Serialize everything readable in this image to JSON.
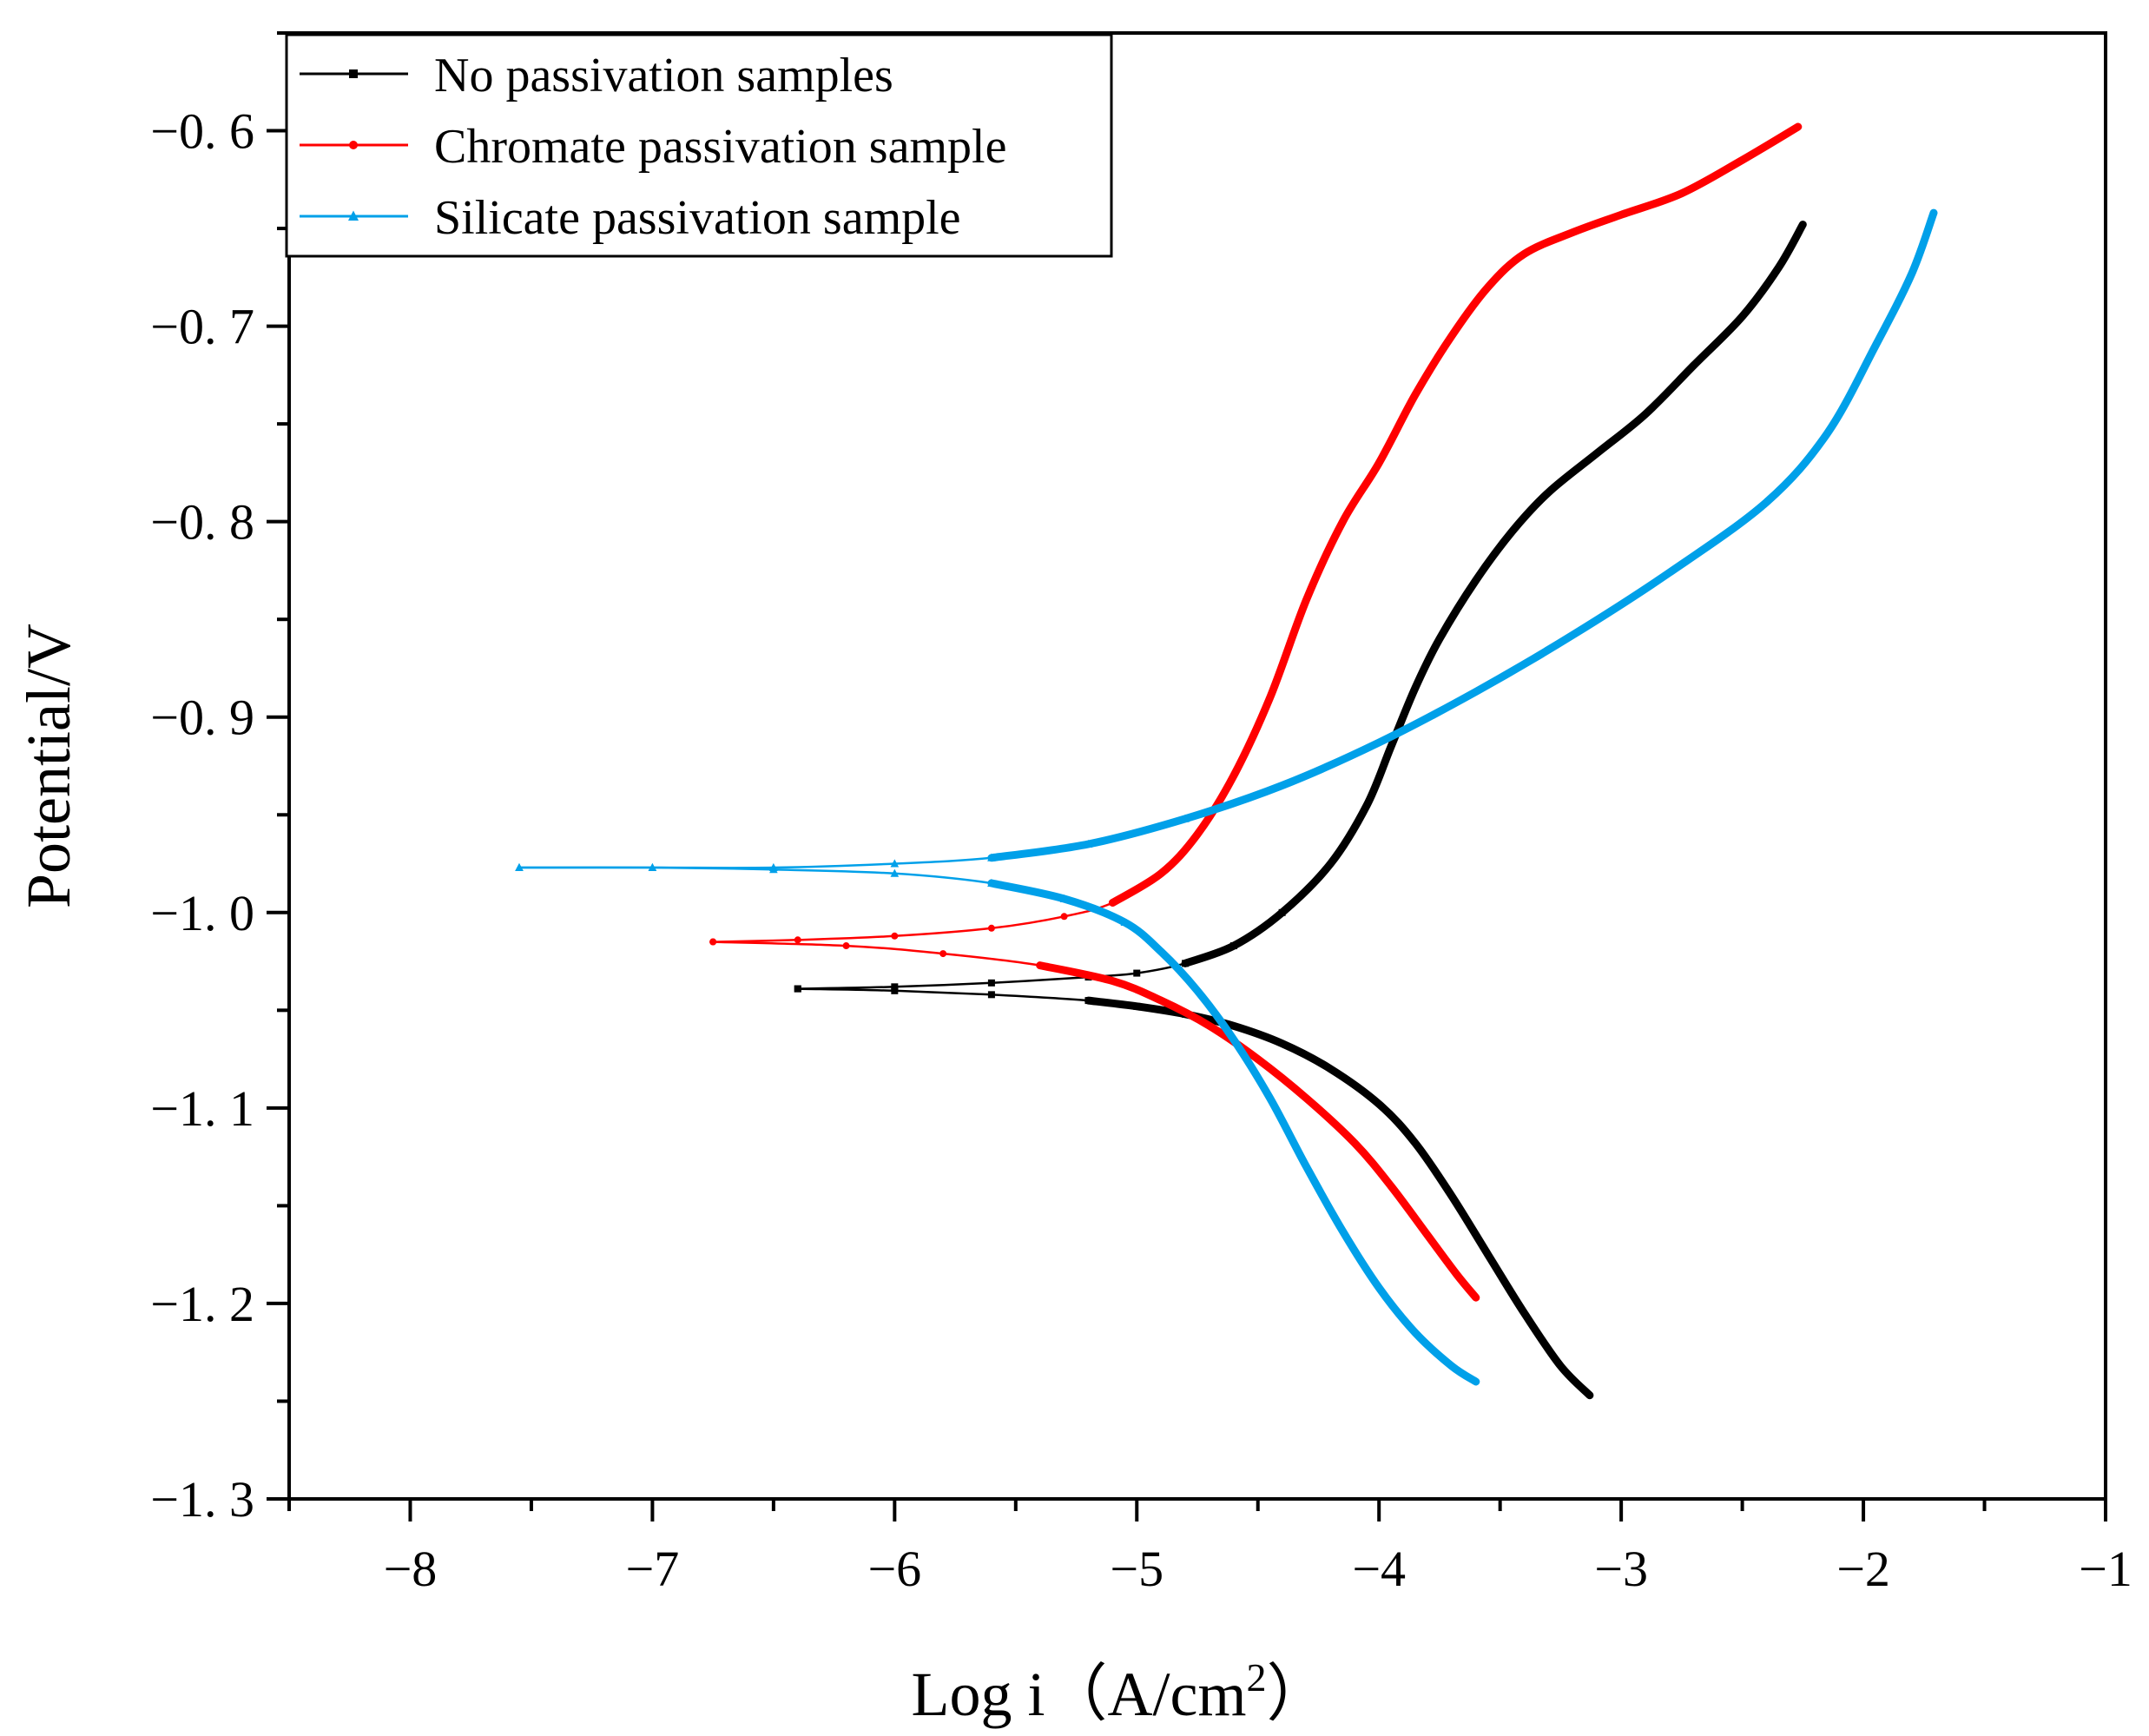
{
  "chart_data": {
    "type": "line",
    "title": "",
    "xlabel": "Log i",
    "xlabel_unit_prefix": "（A/cm",
    "xlabel_unit_sup": "2",
    "xlabel_unit_suffix": "）",
    "ylabel": "Potential/V",
    "xlim": [
      -8.5,
      -1
    ],
    "ylim": [
      -1.3,
      -0.55
    ],
    "x_ticks": [
      -8,
      -7,
      -6,
      -5,
      -4,
      -3,
      -2,
      -1
    ],
    "x_tick_labels": [
      "−8",
      "−7",
      "−6",
      "−5",
      "−4",
      "−3",
      "−2",
      "−1"
    ],
    "y_ticks": [
      -0.6,
      -0.7,
      -0.8,
      -0.9,
      -1.0,
      -1.1,
      -1.2,
      -1.3
    ],
    "y_tick_labels": [
      "−0. 6",
      "−0. 7",
      "−0. 8",
      "−0. 9",
      "−1. 0",
      "−1. 1",
      "−1. 2",
      "−1. 3"
    ],
    "legend_position": "top-left",
    "series": [
      {
        "name": "No passivation samples",
        "color": "#000000",
        "marker": "square",
        "anodic": [
          [
            -6.4,
            -1.039
          ],
          [
            -6.0,
            -1.038
          ],
          [
            -5.6,
            -1.036
          ],
          [
            -5.2,
            -1.033
          ],
          [
            -5.0,
            -1.031
          ],
          [
            -4.8,
            -1.026
          ],
          [
            -4.6,
            -1.017
          ],
          [
            -4.4,
            -1.0
          ],
          [
            -4.2,
            -0.975
          ],
          [
            -4.05,
            -0.945
          ],
          [
            -3.95,
            -0.915
          ],
          [
            -3.85,
            -0.885
          ],
          [
            -3.75,
            -0.86
          ],
          [
            -3.6,
            -0.83
          ],
          [
            -3.45,
            -0.805
          ],
          [
            -3.3,
            -0.785
          ],
          [
            -3.1,
            -0.765
          ],
          [
            -2.9,
            -0.745
          ],
          [
            -2.7,
            -0.72
          ],
          [
            -2.5,
            -0.695
          ],
          [
            -2.35,
            -0.67
          ],
          [
            -2.25,
            -0.648
          ]
        ],
        "cathodic": [
          [
            -6.4,
            -1.039
          ],
          [
            -6.0,
            -1.04
          ],
          [
            -5.6,
            -1.042
          ],
          [
            -5.2,
            -1.045
          ],
          [
            -5.0,
            -1.048
          ],
          [
            -4.8,
            -1.052
          ],
          [
            -4.6,
            -1.058
          ],
          [
            -4.4,
            -1.067
          ],
          [
            -4.2,
            -1.08
          ],
          [
            -4.0,
            -1.098
          ],
          [
            -3.85,
            -1.118
          ],
          [
            -3.7,
            -1.145
          ],
          [
            -3.55,
            -1.175
          ],
          [
            -3.4,
            -1.205
          ],
          [
            -3.25,
            -1.232
          ],
          [
            -3.13,
            -1.247
          ]
        ]
      },
      {
        "name": "Chromate passivation sample",
        "color": "#ff0000",
        "marker": "circle",
        "anodic": [
          [
            -6.75,
            -1.015
          ],
          [
            -6.4,
            -1.014
          ],
          [
            -6.0,
            -1.012
          ],
          [
            -5.6,
            -1.008
          ],
          [
            -5.3,
            -1.002
          ],
          [
            -5.1,
            -0.995
          ],
          [
            -4.9,
            -0.98
          ],
          [
            -4.75,
            -0.96
          ],
          [
            -4.6,
            -0.93
          ],
          [
            -4.45,
            -0.89
          ],
          [
            -4.3,
            -0.84
          ],
          [
            -4.15,
            -0.8
          ],
          [
            -4.0,
            -0.77
          ],
          [
            -3.85,
            -0.735
          ],
          [
            -3.7,
            -0.705
          ],
          [
            -3.55,
            -0.68
          ],
          [
            -3.4,
            -0.663
          ],
          [
            -3.2,
            -0.652
          ],
          [
            -3.0,
            -0.643
          ],
          [
            -2.75,
            -0.632
          ],
          [
            -2.5,
            -0.615
          ],
          [
            -2.27,
            -0.598
          ]
        ],
        "cathodic": [
          [
            -6.75,
            -1.015
          ],
          [
            -6.2,
            -1.017
          ],
          [
            -5.8,
            -1.021
          ],
          [
            -5.4,
            -1.027
          ],
          [
            -5.1,
            -1.035
          ],
          [
            -4.9,
            -1.045
          ],
          [
            -4.7,
            -1.058
          ],
          [
            -4.5,
            -1.075
          ],
          [
            -4.3,
            -1.095
          ],
          [
            -4.1,
            -1.118
          ],
          [
            -3.95,
            -1.14
          ],
          [
            -3.8,
            -1.165
          ],
          [
            -3.68,
            -1.185
          ],
          [
            -3.6,
            -1.197
          ]
        ]
      },
      {
        "name": "Silicate passivation sample",
        "color": "#00a0e9",
        "marker": "triangle",
        "anodic": [
          [
            -7.55,
            -0.977
          ],
          [
            -7.0,
            -0.977
          ],
          [
            -6.5,
            -0.977
          ],
          [
            -6.0,
            -0.975
          ],
          [
            -5.6,
            -0.972
          ],
          [
            -5.2,
            -0.965
          ],
          [
            -4.8,
            -0.952
          ],
          [
            -4.4,
            -0.935
          ],
          [
            -4.0,
            -0.913
          ],
          [
            -3.6,
            -0.887
          ],
          [
            -3.2,
            -0.858
          ],
          [
            -2.8,
            -0.826
          ],
          [
            -2.4,
            -0.79
          ],
          [
            -2.15,
            -0.755
          ],
          [
            -1.95,
            -0.71
          ],
          [
            -1.8,
            -0.673
          ],
          [
            -1.71,
            -0.642
          ]
        ],
        "cathodic": [
          [
            -7.55,
            -0.977
          ],
          [
            -7.0,
            -0.977
          ],
          [
            -6.5,
            -0.978
          ],
          [
            -6.0,
            -0.98
          ],
          [
            -5.6,
            -0.985
          ],
          [
            -5.3,
            -0.993
          ],
          [
            -5.05,
            -1.005
          ],
          [
            -4.9,
            -1.02
          ],
          [
            -4.75,
            -1.04
          ],
          [
            -4.6,
            -1.065
          ],
          [
            -4.45,
            -1.095
          ],
          [
            -4.3,
            -1.13
          ],
          [
            -4.15,
            -1.163
          ],
          [
            -4.0,
            -1.192
          ],
          [
            -3.85,
            -1.215
          ],
          [
            -3.7,
            -1.232
          ],
          [
            -3.6,
            -1.24
          ]
        ]
      }
    ]
  }
}
